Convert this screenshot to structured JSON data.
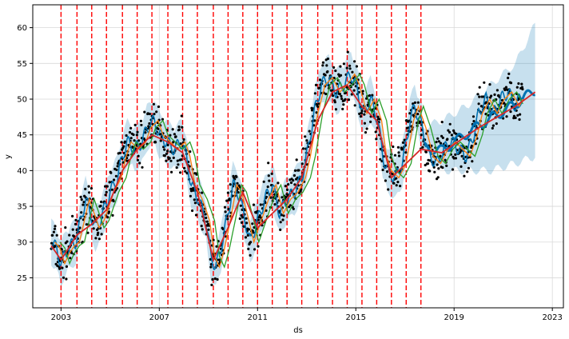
{
  "chart_data": {
    "type": "line",
    "title": "",
    "xlabel": "ds",
    "ylabel": "y",
    "xlim": [
      2001.85,
      2023.45
    ],
    "ylim": [
      20.8,
      63.2
    ],
    "x_ticks": [
      2003,
      2007,
      2011,
      2015,
      2019,
      2023
    ],
    "y_ticks": [
      25,
      30,
      35,
      40,
      45,
      50,
      55,
      60
    ],
    "grid": true,
    "legend": "none",
    "colors": {
      "observed": "#000000",
      "forecast": "#0072B2",
      "uncertainty": "#0072B2",
      "trend": "#d62728",
      "ma_orange": "#ff7f0e",
      "ma_green": "#2ca02c",
      "changepoints": "#ff0000",
      "grid": "#d9d9d9"
    },
    "changepoints": [
      2003.0,
      2003.65,
      2004.25,
      2004.85,
      2005.5,
      2006.1,
      2006.7,
      2007.35,
      2007.95,
      2008.55,
      2009.2,
      2009.8,
      2010.4,
      2011.0,
      2011.6,
      2012.2,
      2012.8,
      2013.45,
      2014.05,
      2014.65,
      2015.25,
      2015.85,
      2016.45,
      2017.05,
      2017.65
    ],
    "observed_series": [
      [
        2002.6,
        30
      ],
      [
        2002.8,
        29.2
      ],
      [
        2003.0,
        27
      ],
      [
        2003.2,
        28.5
      ],
      [
        2003.4,
        29.5
      ],
      [
        2003.6,
        30
      ],
      [
        2003.8,
        33
      ],
      [
        2004.0,
        36
      ],
      [
        2004.2,
        34
      ],
      [
        2004.4,
        32
      ],
      [
        2004.6,
        33
      ],
      [
        2004.8,
        35
      ],
      [
        2005.0,
        37
      ],
      [
        2005.3,
        39
      ],
      [
        2005.5,
        42
      ],
      [
        2005.7,
        44
      ],
      [
        2006.0,
        43
      ],
      [
        2006.3,
        44
      ],
      [
        2006.5,
        46
      ],
      [
        2006.8,
        47
      ],
      [
        2007.0,
        45
      ],
      [
        2007.3,
        44
      ],
      [
        2007.6,
        43
      ],
      [
        2007.9,
        44
      ],
      [
        2008.1,
        42
      ],
      [
        2008.3,
        38
      ],
      [
        2008.6,
        36
      ],
      [
        2008.9,
        33
      ],
      [
        2009.1,
        28
      ],
      [
        2009.3,
        26.5
      ],
      [
        2009.5,
        29
      ],
      [
        2009.8,
        34
      ],
      [
        2010.0,
        38
      ],
      [
        2010.2,
        37
      ],
      [
        2010.5,
        33
      ],
      [
        2010.7,
        30
      ],
      [
        2011.0,
        33
      ],
      [
        2011.3,
        36
      ],
      [
        2011.6,
        38
      ],
      [
        2011.9,
        34
      ],
      [
        2012.2,
        36
      ],
      [
        2012.5,
        37
      ],
      [
        2012.8,
        39
      ],
      [
        2013.0,
        42
      ],
      [
        2013.3,
        48
      ],
      [
        2013.6,
        52
      ],
      [
        2013.9,
        53
      ],
      [
        2014.2,
        51
      ],
      [
        2014.5,
        52
      ],
      [
        2014.8,
        53.5
      ],
      [
        2015.0,
        52
      ],
      [
        2015.3,
        48
      ],
      [
        2015.6,
        50
      ],
      [
        2015.9,
        47
      ],
      [
        2016.1,
        42
      ],
      [
        2016.3,
        40
      ],
      [
        2016.6,
        39
      ],
      [
        2016.9,
        41
      ],
      [
        2017.2,
        47
      ],
      [
        2017.4,
        49
      ],
      [
        2017.7,
        46
      ],
      [
        2018.0,
        42
      ],
      [
        2018.3,
        41
      ],
      [
        2018.6,
        43
      ],
      [
        2018.9,
        44
      ],
      [
        2019.2,
        43
      ],
      [
        2019.5,
        42
      ],
      [
        2019.8,
        45
      ],
      [
        2020.0,
        48
      ],
      [
        2020.3,
        50
      ],
      [
        2020.6,
        48
      ],
      [
        2020.9,
        50
      ],
      [
        2021.2,
        51
      ],
      [
        2021.5,
        49
      ],
      [
        2021.8,
        51
      ]
    ],
    "trend_series": [
      [
        2002.6,
        29.5
      ],
      [
        2003.0,
        27.5
      ],
      [
        2003.65,
        31
      ],
      [
        2004.25,
        32.5
      ],
      [
        2004.85,
        34.5
      ],
      [
        2005.5,
        40
      ],
      [
        2006.1,
        43
      ],
      [
        2006.7,
        45
      ],
      [
        2007.35,
        44
      ],
      [
        2007.95,
        42.5
      ],
      [
        2008.55,
        37
      ],
      [
        2009.2,
        27.5
      ],
      [
        2009.8,
        32
      ],
      [
        2010.4,
        37
      ],
      [
        2011.0,
        32
      ],
      [
        2011.6,
        34
      ],
      [
        2012.2,
        36
      ],
      [
        2012.8,
        39
      ],
      [
        2013.45,
        47
      ],
      [
        2014.05,
        51
      ],
      [
        2014.65,
        52
      ],
      [
        2015.25,
        49
      ],
      [
        2015.85,
        47
      ],
      [
        2016.45,
        39
      ],
      [
        2017.05,
        41
      ],
      [
        2017.65,
        43
      ],
      [
        2018.5,
        42.5
      ],
      [
        2020.0,
        46
      ],
      [
        2021.5,
        49
      ],
      [
        2022.3,
        51
      ]
    ],
    "forecast_band": [
      [
        2017.7,
        43,
        46
      ],
      [
        2018.5,
        40,
        47
      ],
      [
        2019.5,
        40,
        49
      ],
      [
        2020.5,
        40,
        52
      ],
      [
        2021.5,
        41,
        55
      ],
      [
        2022.3,
        42,
        60.5
      ]
    ]
  }
}
